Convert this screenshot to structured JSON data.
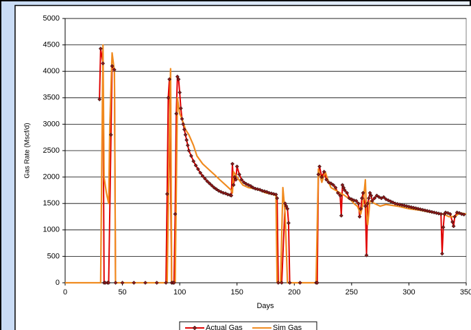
{
  "chart_data": {
    "type": "line",
    "xlabel": "Days",
    "ylabel": "Gas Rate (Mscf/d)",
    "xlim": [
      0,
      350
    ],
    "xticks": [
      0,
      50,
      100,
      150,
      200,
      250,
      300,
      350
    ],
    "ylim": [
      0,
      5000
    ],
    "yticks": [
      0,
      500,
      1000,
      1500,
      2000,
      2500,
      3000,
      3500,
      4000,
      4500,
      5000
    ],
    "grid": true,
    "legend": "bottom",
    "series": [
      {
        "name": "Actual Gas",
        "color": "#e00000",
        "marker_color": "#8b1a1a",
        "x": [
          30,
          31,
          33,
          34,
          35,
          37,
          38,
          40,
          41,
          43,
          44,
          50,
          60,
          70,
          80,
          88,
          89,
          90,
          91,
          93,
          94,
          95,
          96,
          97,
          98,
          99,
          100,
          101,
          102,
          103,
          104,
          105,
          106,
          107,
          108,
          110,
          112,
          114,
          116,
          118,
          120,
          122,
          124,
          126,
          128,
          130,
          132,
          134,
          136,
          138,
          140,
          142,
          144,
          145,
          146,
          147,
          148,
          149,
          150,
          152,
          154,
          156,
          158,
          160,
          162,
          164,
          166,
          168,
          170,
          172,
          174,
          176,
          178,
          180,
          182,
          184,
          185,
          186,
          189,
          192,
          193,
          194,
          195,
          196,
          205,
          219,
          220,
          221,
          222,
          224,
          226,
          228,
          230,
          232,
          234,
          236,
          238,
          240,
          241,
          242,
          243,
          244,
          246,
          248,
          250,
          252,
          254,
          256,
          257,
          258,
          259,
          260,
          262,
          263,
          264,
          265,
          266,
          267,
          268,
          270,
          272,
          274,
          276,
          278,
          280,
          282,
          284,
          286,
          288,
          290,
          292,
          294,
          296,
          298,
          300,
          302,
          304,
          306,
          308,
          310,
          312,
          314,
          316,
          318,
          320,
          322,
          324,
          326,
          328,
          329,
          330,
          331,
          332,
          334,
          336,
          338,
          339,
          340,
          342,
          344,
          346,
          348
        ],
        "values": [
          3470,
          4430,
          4150,
          0,
          0,
          0,
          0,
          2800,
          4100,
          4030,
          0,
          0,
          0,
          0,
          0,
          0,
          1680,
          3500,
          3850,
          0,
          0,
          0,
          1300,
          3200,
          3900,
          3850,
          3600,
          3300,
          3100,
          3000,
          2900,
          2800,
          2700,
          2600,
          2500,
          2400,
          2300,
          2220,
          2150,
          2080,
          2020,
          1970,
          1920,
          1880,
          1840,
          1800,
          1770,
          1740,
          1720,
          1700,
          1690,
          1670,
          1660,
          1650,
          2250,
          1850,
          2000,
          1950,
          2200,
          2050,
          1950,
          1900,
          1870,
          1850,
          1830,
          1800,
          1780,
          1770,
          1760,
          1740,
          1730,
          1720,
          1700,
          1690,
          1680,
          1670,
          1600,
          0,
          0,
          1500,
          1450,
          1400,
          1130,
          0,
          0,
          0,
          0,
          2050,
          2200,
          2000,
          2100,
          1950,
          1900,
          1880,
          1850,
          1800,
          1700,
          1650,
          1270,
          1850,
          1800,
          1750,
          1700,
          1600,
          1580,
          1560,
          1550,
          1500,
          1250,
          1400,
          1600,
          1700,
          1450,
          520,
          1500,
          1600,
          1700,
          1650,
          1550,
          1600,
          1650,
          1620,
          1600,
          1620,
          1580,
          1560,
          1540,
          1520,
          1500,
          1490,
          1480,
          1470,
          1460,
          1450,
          1440,
          1430,
          1420,
          1410,
          1400,
          1390,
          1380,
          1370,
          1360,
          1350,
          1340,
          1330,
          1320,
          1310,
          1300,
          550,
          1050,
          1300,
          1330,
          1320,
          1300,
          1150,
          1070,
          1250,
          1330,
          1320,
          1300,
          1290
        ]
      },
      {
        "name": "Sim Gas",
        "color": "#f08a1e",
        "x": [
          0,
          31,
          33,
          34,
          36,
          38,
          39,
          41,
          43,
          44,
          89,
          91,
          92,
          93,
          96,
          98,
          100,
          102,
          105,
          108,
          112,
          115,
          120,
          125,
          130,
          135,
          140,
          145,
          146,
          147,
          150,
          155,
          160,
          165,
          170,
          175,
          180,
          184,
          185,
          188,
          190,
          192,
          194,
          219,
          221,
          224,
          227,
          230,
          232,
          236,
          240,
          244,
          247,
          250,
          252,
          255,
          258,
          260,
          262,
          263,
          264,
          266,
          270,
          275,
          280,
          290,
          300,
          310,
          315,
          320,
          330,
          335,
          340,
          343,
          345,
          350
        ],
        "values": [
          0,
          0,
          4500,
          2000,
          1700,
          1500,
          3000,
          4350,
          4000,
          0,
          0,
          2800,
          4050,
          0,
          0,
          3500,
          3200,
          3100,
          2900,
          2800,
          2600,
          2400,
          2250,
          2150,
          2050,
          1950,
          1850,
          1750,
          1700,
          2100,
          2000,
          1850,
          1800,
          1780,
          1750,
          1700,
          1680,
          1650,
          0,
          0,
          1800,
          1300,
          0,
          0,
          2150,
          1900,
          2100,
          1900,
          1800,
          1750,
          1700,
          1650,
          1600,
          1550,
          1500,
          1450,
          1300,
          1500,
          1950,
          1300,
          1100,
          1550,
          1500,
          1450,
          1480,
          1450,
          1400,
          1370,
          1350,
          1330,
          1300,
          1250,
          1250,
          1300,
          1320,
          1300
        ]
      }
    ]
  }
}
